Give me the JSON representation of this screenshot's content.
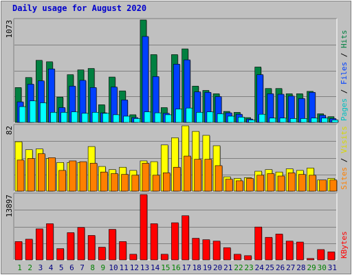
{
  "chart_data": {
    "title": "Daily usage for August 2020",
    "x": [
      "1",
      "2",
      "3",
      "4",
      "5",
      "6",
      "7",
      "8",
      "9",
      "10",
      "11",
      "12",
      "13",
      "14",
      "15",
      "16",
      "17",
      "18",
      "19",
      "20",
      "21",
      "22",
      "23",
      "24",
      "25",
      "26",
      "27",
      "28",
      "29",
      "30",
      "31"
    ],
    "weekend_days": [
      "1",
      "2",
      "8",
      "9",
      "15",
      "16",
      "22",
      "23",
      "29",
      "30"
    ],
    "panels": [
      {
        "type": "bar",
        "ymax_label": "1073",
        "ylim": [
          0,
          1073
        ],
        "series": [
          {
            "name": "Hits",
            "color": "#008040",
            "values": [
              365,
              470,
              650,
              635,
              265,
              500,
              550,
              565,
              185,
              475,
              330,
              80,
              1073,
              710,
              155,
              710,
              770,
              380,
              335,
              300,
              115,
              105,
              50,
              580,
              355,
              355,
              300,
              300,
              325,
              90,
              60
            ]
          },
          {
            "name": "Files",
            "color": "#0040ff",
            "values": [
              215,
              400,
              435,
              560,
              155,
              380,
              440,
              365,
              100,
              370,
              235,
              50,
              900,
              480,
              95,
              610,
              655,
              320,
              315,
              270,
              100,
              85,
              35,
              500,
              300,
              295,
              275,
              250,
              315,
              75,
              40
            ]
          },
          {
            "name": "Pages",
            "color": "#00ffff",
            "values": [
              165,
              225,
              205,
              105,
              105,
              110,
              95,
              105,
              95,
              80,
              65,
              40,
              110,
              100,
              80,
              140,
              150,
              105,
              110,
              90,
              65,
              55,
              25,
              85,
              45,
              45,
              40,
              40,
              45,
              45,
              25
            ]
          }
        ]
      },
      {
        "type": "bar",
        "ymax_label": "82",
        "ylim": [
          0,
          82
        ],
        "series": [
          {
            "name": "Visits",
            "color": "#ffff00",
            "values": [
              62,
              52,
              53,
              41,
              36,
              36,
              36,
              56,
              31,
              27,
              30,
              26,
              38,
              37,
              58,
              67,
              82,
              75,
              70,
              57,
              18,
              16,
              17,
              25,
              27,
              24,
              28,
              26,
              29,
              14,
              16
            ]
          },
          {
            "name": "Sites",
            "color": "#ff8000",
            "values": [
              39,
              41,
              47,
              42,
              26,
              38,
              37,
              35,
              24,
              22,
              21,
              20,
              35,
              20,
              23,
              30,
              44,
              40,
              40,
              32,
              15,
              13,
              16,
              20,
              22,
              19,
              23,
              21,
              20,
              14,
              14
            ]
          }
        ]
      },
      {
        "type": "bar",
        "ymax_label": "13897",
        "ylim": [
          0,
          13897
        ],
        "series": [
          {
            "name": "KBytes",
            "color": "#ff0000",
            "values": [
              3900,
              4400,
              6600,
              7700,
              2400,
              5800,
              6900,
              5200,
              2700,
              6500,
              3900,
              1200,
              13897,
              7700,
              1200,
              7900,
              9400,
              4600,
              4300,
              4000,
              2600,
              1200,
              900,
              7000,
              4800,
              5500,
              4000,
              3800,
              300,
              2200,
              1700
            ]
          }
        ]
      }
    ],
    "right_labels": [
      {
        "parts": [
          {
            "text": "Pages",
            "color": "#00c0c0"
          },
          {
            "text": " / ",
            "color": "#000000"
          },
          {
            "text": "Files",
            "color": "#0040ff"
          },
          {
            "text": " / ",
            "color": "#000000"
          },
          {
            "text": "Hits",
            "color": "#008040"
          }
        ]
      },
      {
        "parts": [
          {
            "text": "Sites",
            "color": "#ff8000"
          },
          {
            "text": " / ",
            "color": "#000000"
          },
          {
            "text": "Visits",
            "color": "#d8d800"
          }
        ]
      },
      {
        "parts": [
          {
            "text": "KBytes",
            "color": "#ff0000"
          }
        ]
      }
    ],
    "colors": {
      "background": "#c0c0c0",
      "weekday_label": "#000080",
      "weekend_label": "#008000"
    }
  }
}
